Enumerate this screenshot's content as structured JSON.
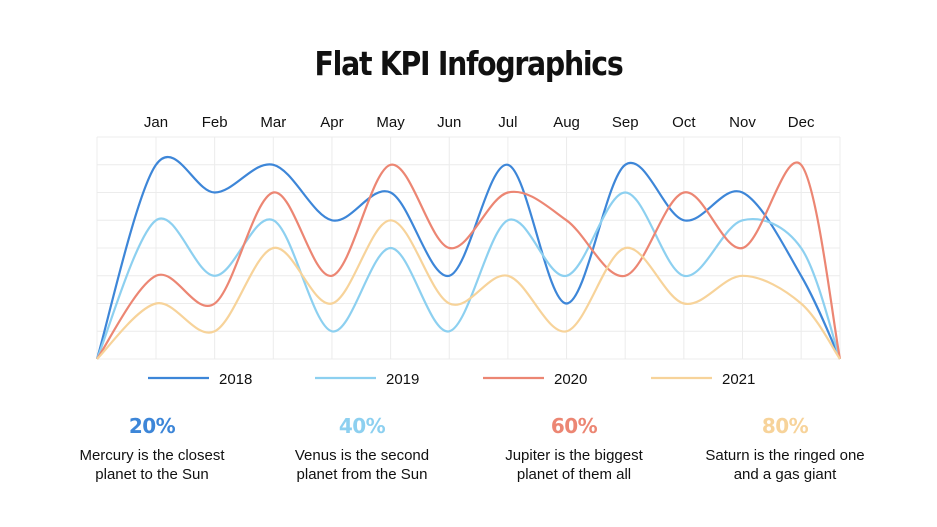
{
  "title": "Flat KPI Infographics",
  "chart_data": {
    "type": "line",
    "categories": [
      "Jan",
      "Feb",
      "Mar",
      "Apr",
      "May",
      "Jun",
      "Jul",
      "Aug",
      "Sep",
      "Oct",
      "Nov",
      "Dec"
    ],
    "ylim": [
      0,
      8
    ],
    "grid": true,
    "legend_position": "bottom",
    "x_axis_position": "top",
    "smooth": true,
    "series": [
      {
        "name": "2018",
        "color": "#3d86d8",
        "values": [
          7,
          6,
          7,
          5,
          6,
          3,
          7,
          2,
          7,
          5,
          6,
          3
        ]
      },
      {
        "name": "2019",
        "color": "#8dd0f0",
        "values": [
          5,
          3,
          5,
          1,
          4,
          1,
          5,
          3,
          6,
          3,
          5,
          4
        ]
      },
      {
        "name": "2020",
        "color": "#ec8673",
        "values": [
          3,
          2,
          6,
          3,
          7,
          4,
          6,
          5,
          3,
          6,
          4,
          7
        ]
      },
      {
        "name": "2021",
        "color": "#f7d39a",
        "values": [
          2,
          1,
          4,
          2,
          5,
          2,
          3,
          1,
          4,
          2,
          3,
          2
        ]
      }
    ]
  },
  "kpis": [
    {
      "value": "20%",
      "color": "#3d86d8",
      "line1": "Mercury is the closest",
      "line2": "planet to the Sun"
    },
    {
      "value": "40%",
      "color": "#8dd0f0",
      "line1": "Venus is the second",
      "line2": "planet from the Sun"
    },
    {
      "value": "60%",
      "color": "#ec8673",
      "line1": "Jupiter is the biggest",
      "line2": "planet of them all"
    },
    {
      "value": "80%",
      "color": "#f7d39a",
      "line1": "Saturn is the ringed one",
      "line2": "and a gas giant"
    }
  ]
}
